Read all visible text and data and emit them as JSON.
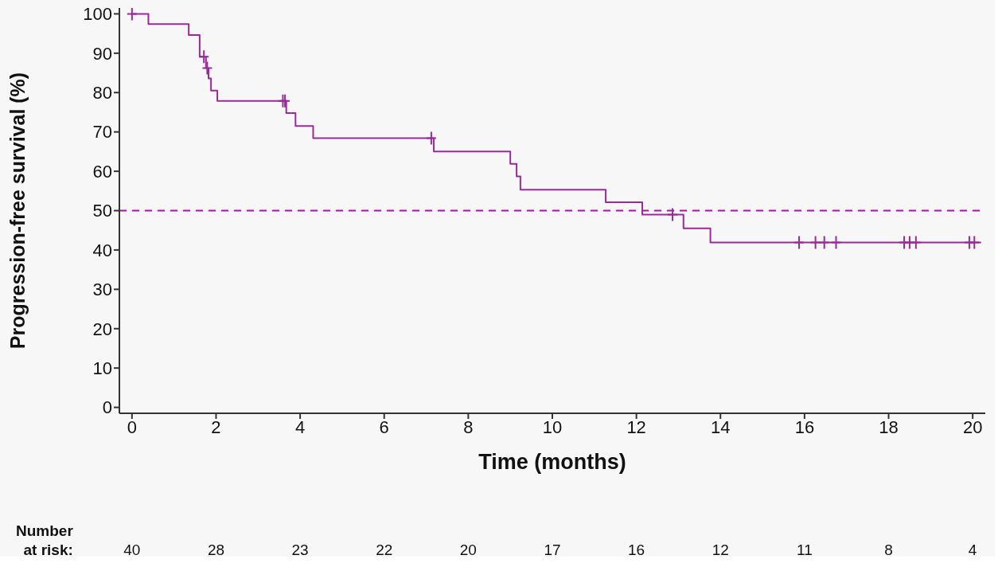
{
  "chart_data": {
    "type": "step",
    "xlabel": "Time (months)",
    "ylabel": "Progression-free survival (%)",
    "xlim": [
      -0.3,
      20.3
    ],
    "ylim": [
      -1.5,
      101.5
    ],
    "xticks": [
      0,
      2,
      4,
      6,
      8,
      10,
      12,
      14,
      16,
      18,
      20
    ],
    "yticks": [
      0,
      10,
      20,
      30,
      40,
      50,
      60,
      70,
      80,
      90,
      100
    ],
    "grid": false,
    "legend": false,
    "series": [
      {
        "color": "#9b2a9b",
        "line_style": "solid",
        "marker": "none",
        "x": [
          0,
          0.39,
          1.35,
          1.61,
          1.76,
          1.82,
          1.88,
          2.03,
          3.67,
          3.89,
          4.31,
          7.18,
          9.0,
          9.15,
          9.24,
          11.27,
          12.14,
          13.12,
          13.76,
          20.2
        ],
        "values": [
          100,
          97.4,
          94.6,
          89.1,
          86.2,
          83.6,
          80.5,
          77.9,
          74.8,
          71.5,
          68.4,
          65.0,
          61.9,
          58.7,
          55.3,
          52.1,
          49.0,
          45.5,
          41.9,
          41.9
        ]
      },
      {
        "type": "scatter",
        "color": "#9b2a9b",
        "marker": "cross",
        "x": [
          0,
          1.71,
          1.79,
          3.59,
          3.64,
          7.12,
          12.86,
          15.87,
          16.26,
          16.47,
          16.75,
          18.37,
          18.5,
          18.65,
          19.92,
          20.04
        ],
        "values": [
          100,
          89.1,
          86.2,
          77.9,
          77.9,
          68.4,
          49.0,
          41.9,
          41.9,
          41.9,
          41.9,
          41.9,
          41.9,
          41.9,
          41.9,
          41.9
        ]
      }
    ],
    "ref_lines": [
      {
        "axis": "y",
        "value": 50,
        "color": "#b010b0",
        "line_style": "dashed"
      }
    ],
    "annotations": [
      "Number\nat risk:",
      "40",
      "28",
      "23",
      "22",
      "20",
      "17",
      "16",
      "12",
      "11",
      "8",
      "4"
    ]
  }
}
